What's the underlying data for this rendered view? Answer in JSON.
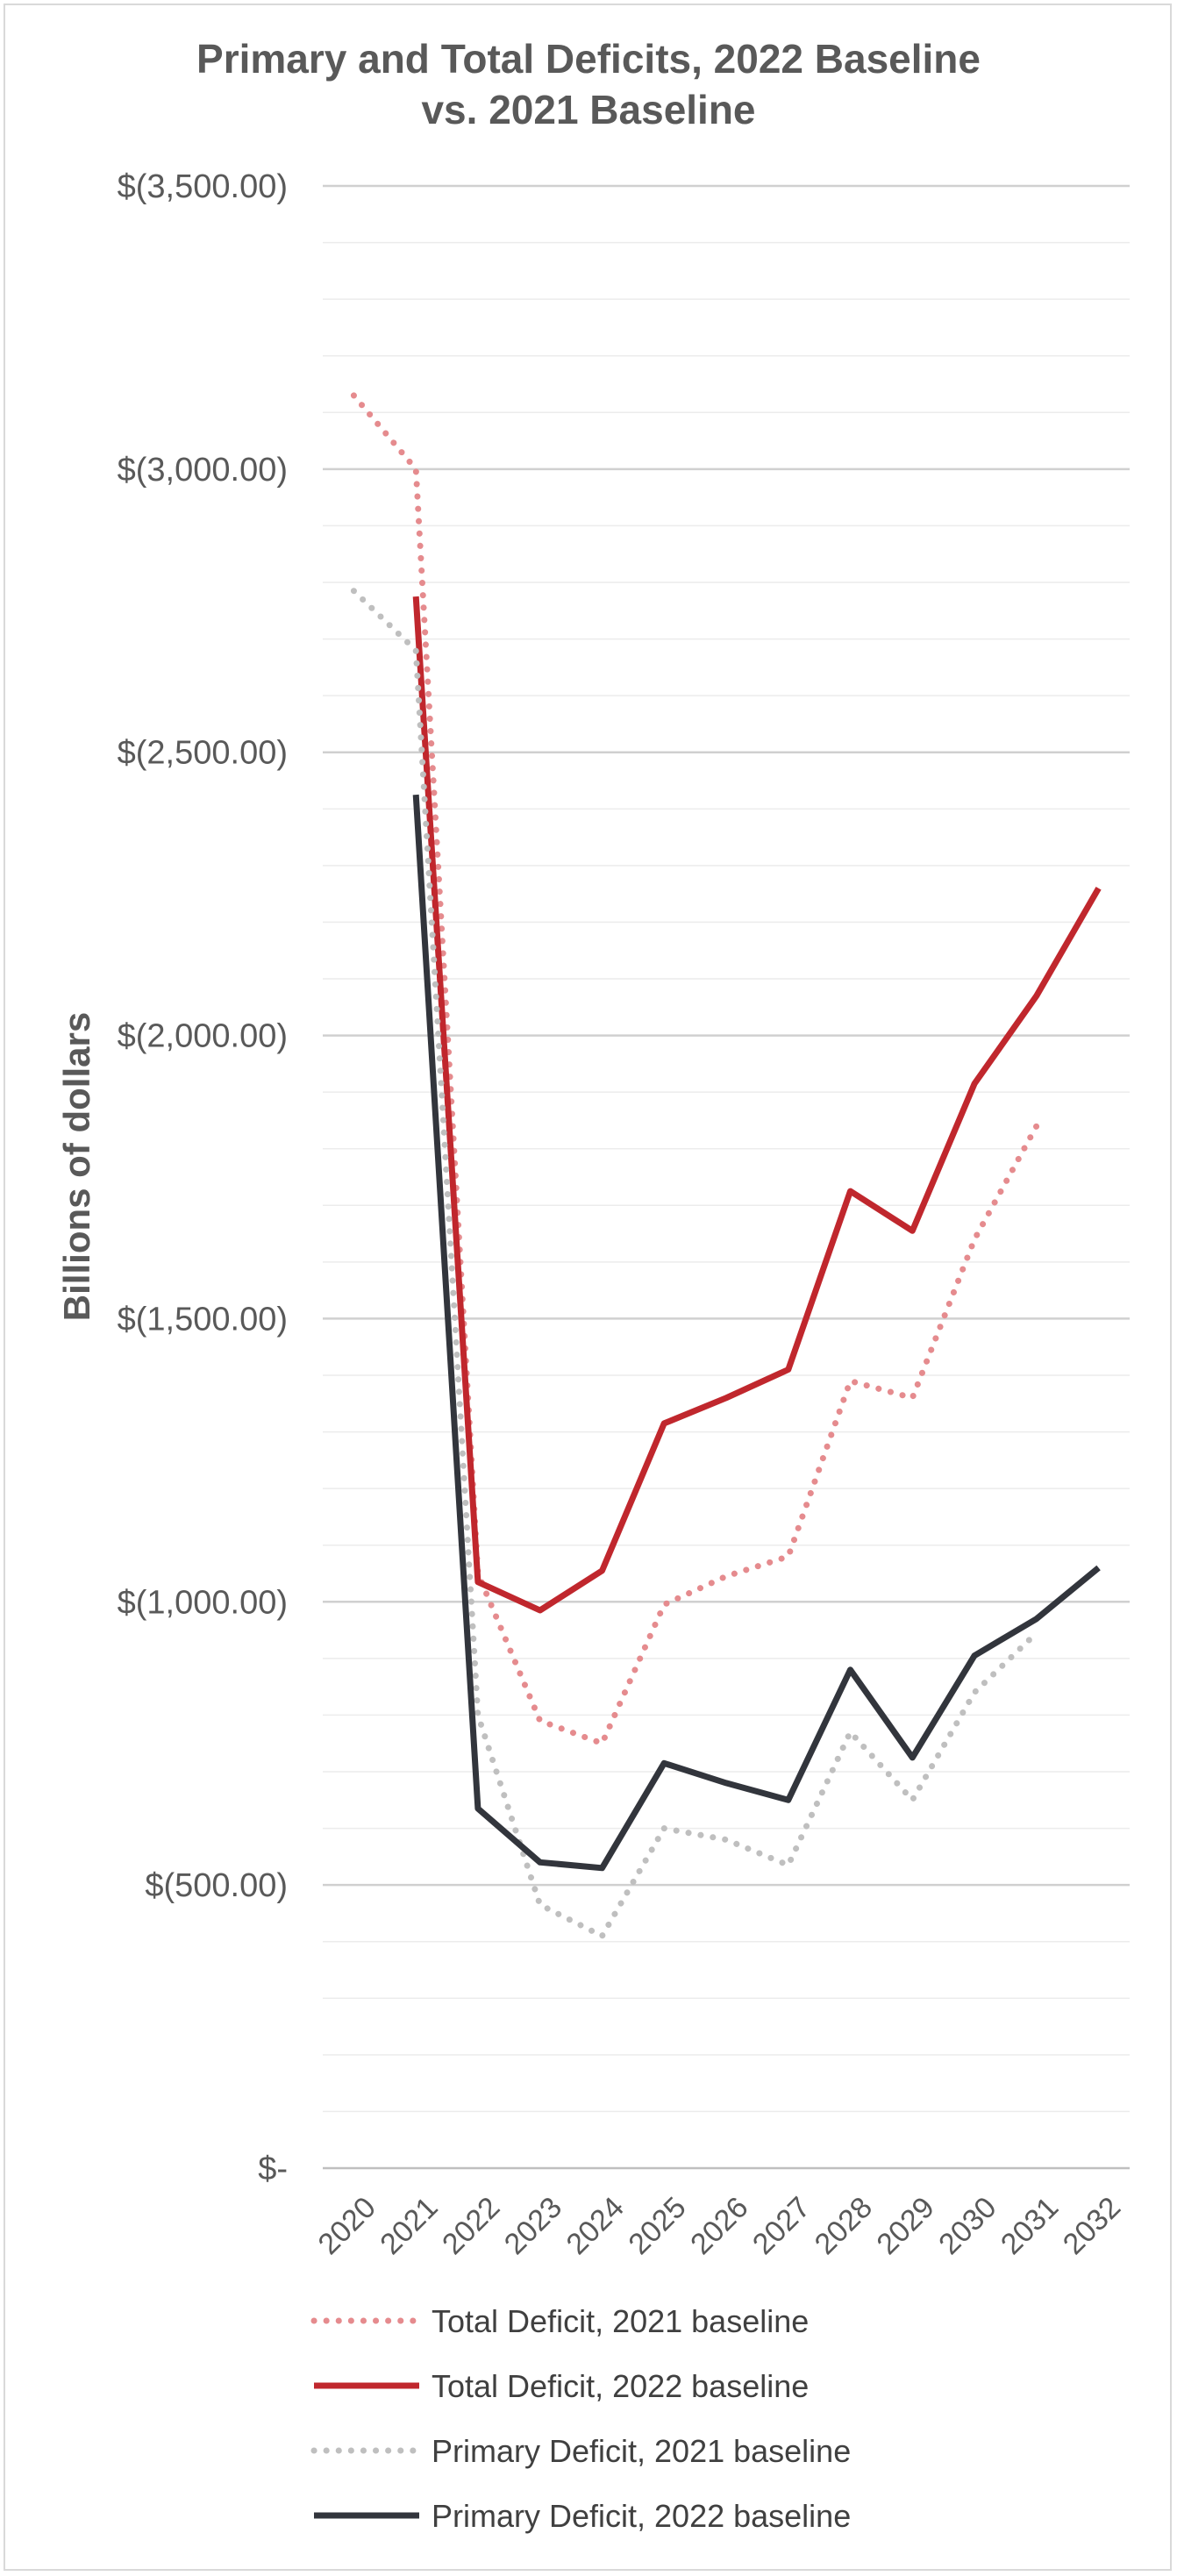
{
  "chart_data": {
    "type": "line",
    "title_line1": "Primary and Total Deficits, 2022 Baseline",
    "title_line2": "vs. 2021 Baseline",
    "ylabel": "Billions of dollars",
    "xlabel": "",
    "ylim": [
      0,
      3500
    ],
    "y_ticks": [
      {
        "value": 3500,
        "label": "$(3,500.00)"
      },
      {
        "value": 3000,
        "label": "$(3,000.00)"
      },
      {
        "value": 2500,
        "label": "$(2,500.00)"
      },
      {
        "value": 2000,
        "label": "$(2,000.00)"
      },
      {
        "value": 1500,
        "label": "$(1,500.00)"
      },
      {
        "value": 1000,
        "label": "$(1,000.00)"
      },
      {
        "value": 500,
        "label": "$(500.00)"
      },
      {
        "value": 0,
        "label": "$-"
      }
    ],
    "minor_grid_step": 100,
    "grid": true,
    "legend_position": "bottom",
    "categories": [
      "2020",
      "2021",
      "2022",
      "2023",
      "2024",
      "2025",
      "2026",
      "2027",
      "2028",
      "2029",
      "2030",
      "2031",
      "2032"
    ],
    "series": [
      {
        "name": "Total Deficit, 2021 baseline",
        "style": "dotted",
        "color": "#e58b8e",
        "values": [
          3130,
          3000,
          1050,
          790,
          750,
          995,
          1045,
          1080,
          1390,
          1360,
          1640,
          1840,
          null
        ]
      },
      {
        "name": "Total Deficit, 2022 baseline",
        "style": "solid",
        "color": "#c0272d",
        "values": [
          null,
          2775,
          1035,
          985,
          1055,
          1315,
          1360,
          1410,
          1725,
          1655,
          1915,
          2070,
          2260
        ]
      },
      {
        "name": "Primary Deficit, 2021 baseline",
        "style": "dotted",
        "color": "#bfbfbf",
        "values": [
          2785,
          2680,
          800,
          465,
          410,
          600,
          580,
          535,
          770,
          650,
          840,
          945,
          null
        ]
      },
      {
        "name": "Primary Deficit, 2022 baseline",
        "style": "solid",
        "color": "#32353c",
        "values": [
          null,
          2425,
          635,
          540,
          530,
          715,
          680,
          650,
          880,
          725,
          905,
          970,
          1060
        ]
      }
    ]
  }
}
